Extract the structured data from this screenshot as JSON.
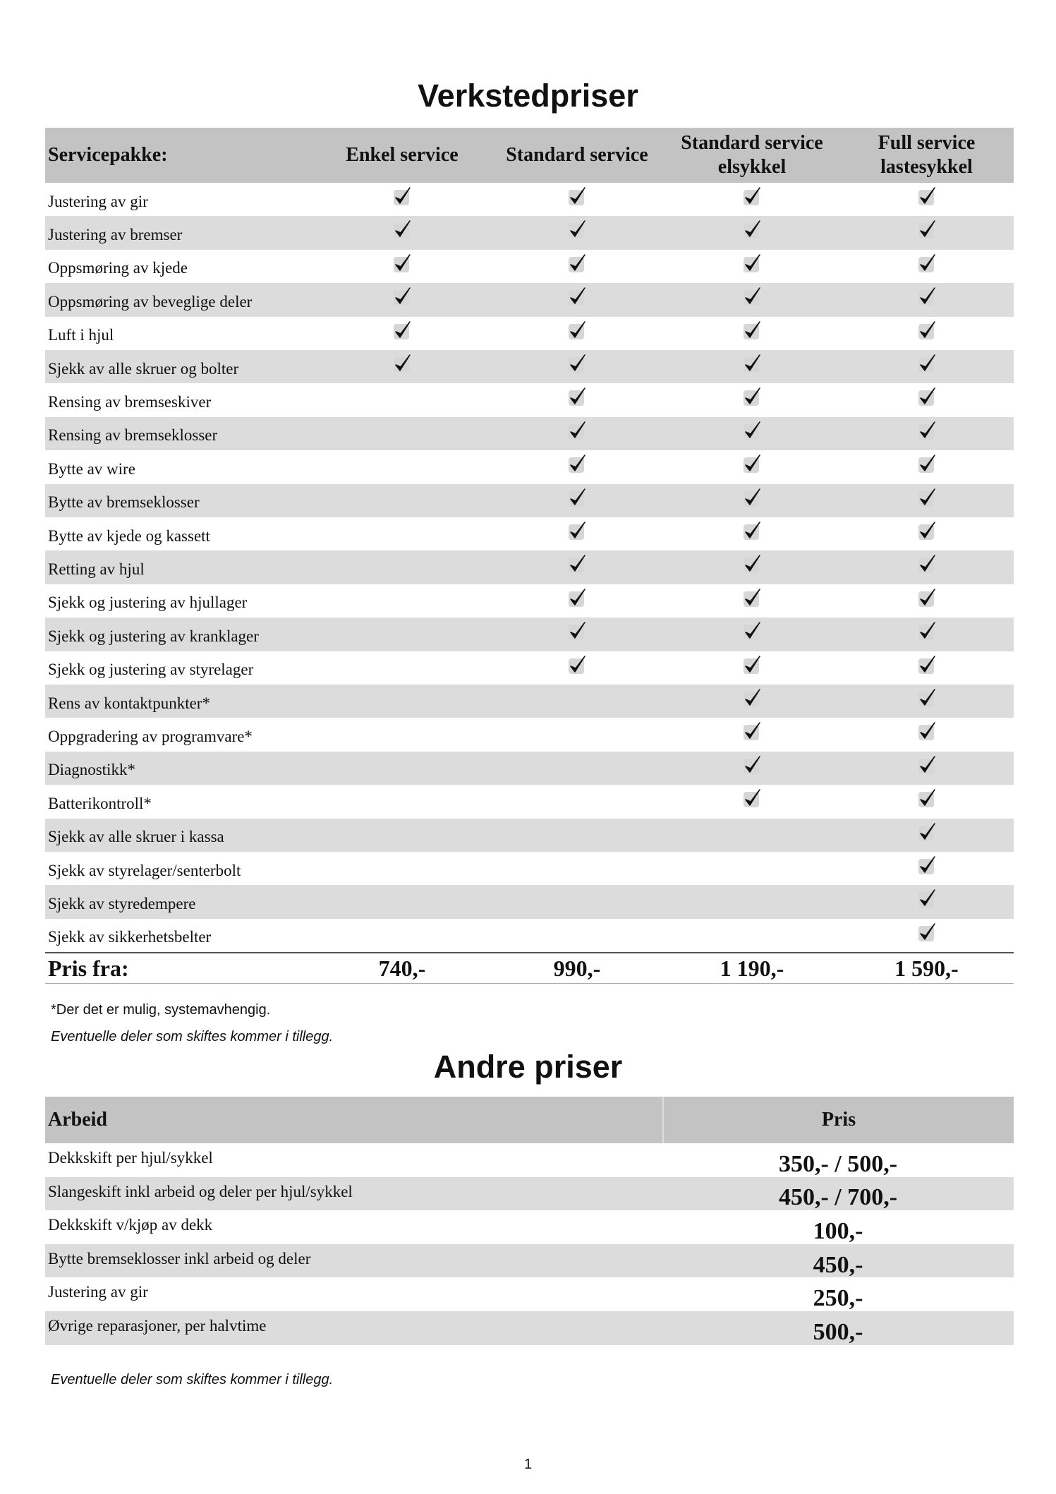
{
  "title": "Verkstedpriser",
  "service_table": {
    "header": [
      "Servicepakke:",
      "Enkel service",
      "Standard service",
      "Standard service elsykkel",
      "Full service lastesykkel"
    ],
    "rows": [
      {
        "label": "Justering av gir",
        "checks": [
          true,
          true,
          true,
          true
        ]
      },
      {
        "label": "Justering av bremser",
        "checks": [
          true,
          true,
          true,
          true
        ]
      },
      {
        "label": "Oppsmøring av kjede",
        "checks": [
          true,
          true,
          true,
          true
        ]
      },
      {
        "label": "Oppsmøring av beveglige deler",
        "checks": [
          true,
          true,
          true,
          true
        ]
      },
      {
        "label": "Luft i hjul",
        "checks": [
          true,
          true,
          true,
          true
        ]
      },
      {
        "label": "Sjekk av alle skruer og bolter",
        "checks": [
          true,
          true,
          true,
          true
        ]
      },
      {
        "label": "Rensing av bremseskiver",
        "checks": [
          false,
          true,
          true,
          true
        ]
      },
      {
        "label": "Rensing av bremseklosser",
        "checks": [
          false,
          true,
          true,
          true
        ]
      },
      {
        "label": "Bytte av wire",
        "checks": [
          false,
          true,
          true,
          true
        ]
      },
      {
        "label": "Bytte av bremseklosser",
        "checks": [
          false,
          true,
          true,
          true
        ]
      },
      {
        "label": "Bytte av kjede og kassett",
        "checks": [
          false,
          true,
          true,
          true
        ]
      },
      {
        "label": "Retting av hjul",
        "checks": [
          false,
          true,
          true,
          true
        ]
      },
      {
        "label": "Sjekk og justering av hjullager",
        "checks": [
          false,
          true,
          true,
          true
        ]
      },
      {
        "label": "Sjekk og justering av kranklager",
        "checks": [
          false,
          true,
          true,
          true
        ]
      },
      {
        "label": "Sjekk og justering av styrelager",
        "checks": [
          false,
          true,
          true,
          true
        ]
      },
      {
        "label": "Rens av kontaktpunkter*",
        "checks": [
          false,
          false,
          true,
          true
        ]
      },
      {
        "label": "Oppgradering av programvare*",
        "checks": [
          false,
          false,
          true,
          true
        ]
      },
      {
        "label": "Diagnostikk*",
        "checks": [
          false,
          false,
          true,
          true
        ]
      },
      {
        "label": "Batterikontroll*",
        "checks": [
          false,
          false,
          true,
          true
        ]
      },
      {
        "label": "Sjekk av alle skruer i kassa",
        "checks": [
          false,
          false,
          false,
          true
        ]
      },
      {
        "label": "Sjekk av styrelager/senterbolt",
        "checks": [
          false,
          false,
          false,
          true
        ]
      },
      {
        "label": "Sjekk av styredempere",
        "checks": [
          false,
          false,
          false,
          true
        ]
      },
      {
        "label": "Sjekk av sikkerhetsbelter",
        "checks": [
          false,
          false,
          false,
          true
        ]
      }
    ],
    "price_row": [
      "Pris fra:",
      "740,-",
      "990,-",
      "1 190,-",
      "1 590,-"
    ]
  },
  "notes": [
    "*Der det er mulig, systemavhengig.",
    "Eventuelle deler som skiftes kommer i tillegg."
  ],
  "other_title": "Andre priser",
  "other_table": {
    "header": [
      "Arbeid",
      "Pris"
    ],
    "rows": [
      [
        "Dekkskift per hjul/sykkel",
        "350,- / 500,-"
      ],
      [
        "Slangeskift inkl arbeid og deler per hjul/sykkel",
        "450,- / 700,-"
      ],
      [
        "Dekkskift v/kjøp av dekk",
        "100,-"
      ],
      [
        "Bytte bremseklosser inkl arbeid og deler",
        "450,-"
      ],
      [
        "Justering av gir",
        "250,-"
      ],
      [
        "Øvrige reparasjoner, per halvtime",
        "500,-"
      ]
    ]
  },
  "footer_note": "Eventuelle deler som skiftes kommer i tillegg.",
  "page_number": "1"
}
